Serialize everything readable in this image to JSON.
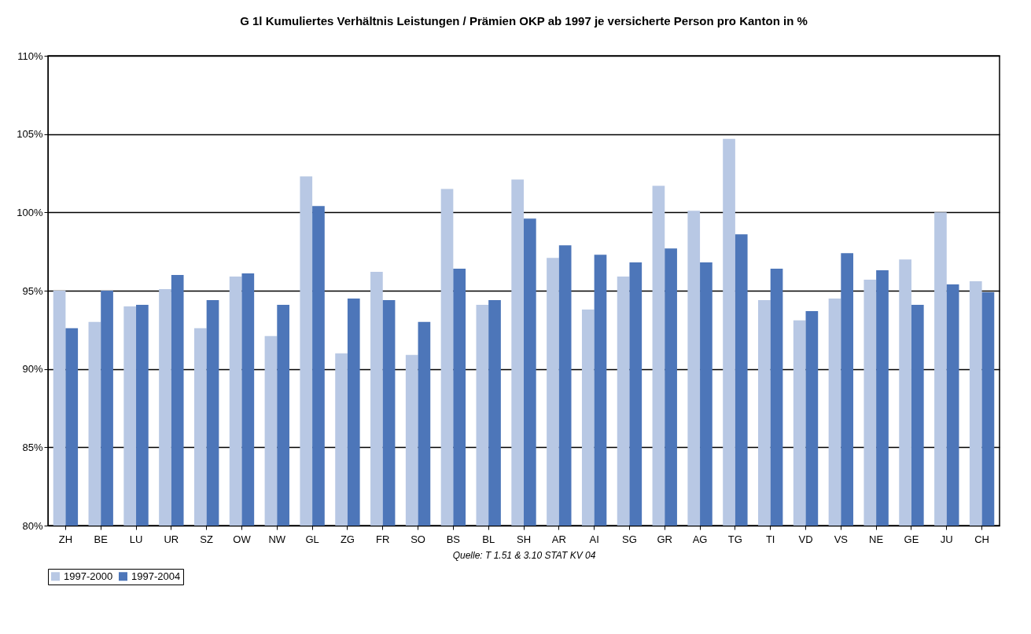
{
  "chart_data": {
    "type": "bar",
    "title": "G 1l Kumuliertes Verhältnis Leistungen / Prämien OKP ab 1997 je versicherte Person pro Kanton in %",
    "categories": [
      "ZH",
      "BE",
      "LU",
      "UR",
      "SZ",
      "OW",
      "NW",
      "GL",
      "ZG",
      "FR",
      "SO",
      "BS",
      "BL",
      "SH",
      "AR",
      "AI",
      "SG",
      "GR",
      "AG",
      "TG",
      "TI",
      "VD",
      "VS",
      "NE",
      "GE",
      "JU",
      "CH"
    ],
    "series": [
      {
        "name": "1997-2000",
        "color": "#b8c8e4",
        "values": [
          95.0,
          93.0,
          94.0,
          95.1,
          92.6,
          95.9,
          92.1,
          102.3,
          91.0,
          96.2,
          90.9,
          101.5,
          94.1,
          102.1,
          97.1,
          93.8,
          95.9,
          101.7,
          100.1,
          104.7,
          94.4,
          93.1,
          94.5,
          95.7,
          97.0,
          100.0,
          95.6
        ]
      },
      {
        "name": "1997-2004",
        "color": "#4d76b9",
        "values": [
          92.6,
          95.0,
          94.1,
          96.0,
          94.4,
          96.1,
          94.1,
          100.4,
          94.5,
          94.4,
          93.0,
          96.4,
          94.4,
          99.6,
          97.9,
          97.3,
          96.8,
          97.7,
          96.8,
          98.6,
          96.4,
          93.7,
          97.4,
          96.3,
          94.1,
          95.4,
          94.9
        ]
      }
    ],
    "ylim": [
      80,
      110
    ],
    "yticks": [
      {
        "value": 80,
        "label": "80%"
      },
      {
        "value": 85,
        "label": "85%"
      },
      {
        "value": 90,
        "label": "90%"
      },
      {
        "value": 95,
        "label": "95%"
      },
      {
        "value": 100,
        "label": "100%"
      },
      {
        "value": 105,
        "label": "105%"
      },
      {
        "value": 110,
        "label": "110%"
      }
    ],
    "grid": "y",
    "legend": "bottom",
    "annotations": [
      "Quelle: T 1.51 & 3.10  STAT KV 04"
    ]
  }
}
